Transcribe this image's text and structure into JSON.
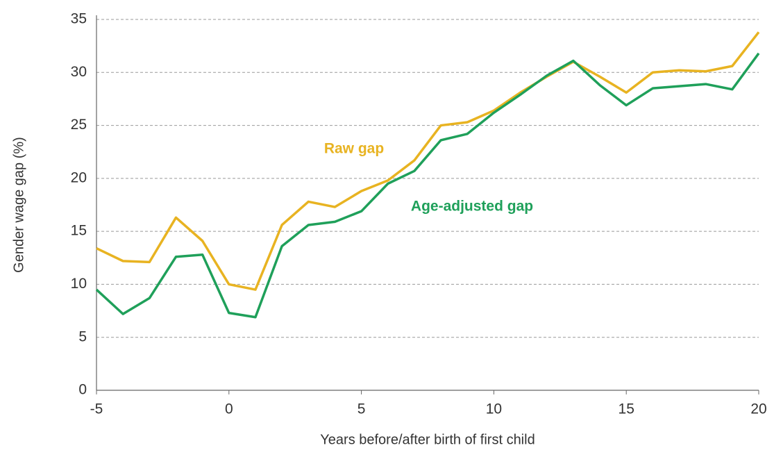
{
  "chart_data": {
    "type": "line",
    "x": [
      -5,
      -4,
      -3,
      -2,
      -1,
      0,
      1,
      2,
      3,
      4,
      5,
      6,
      7,
      8,
      9,
      10,
      11,
      12,
      13,
      14,
      15,
      16,
      17,
      18,
      19,
      20
    ],
    "series": [
      {
        "name": "Raw gap",
        "color": "#e8b321",
        "values": [
          13.4,
          12.2,
          12.1,
          16.3,
          14.1,
          10.0,
          9.5,
          15.6,
          17.8,
          17.3,
          18.8,
          19.8,
          21.7,
          25.0,
          25.3,
          26.4,
          28.1,
          29.6,
          31.0,
          29.6,
          28.1,
          30.0,
          30.2,
          30.1,
          30.6,
          33.8
        ]
      },
      {
        "name": "Age-adjusted gap",
        "color": "#1fa05a",
        "values": [
          9.5,
          7.2,
          8.7,
          12.6,
          12.8,
          7.3,
          6.9,
          13.6,
          15.6,
          15.9,
          16.9,
          19.5,
          20.7,
          23.6,
          24.2,
          26.2,
          27.9,
          29.7,
          31.1,
          28.8,
          26.9,
          28.5,
          28.7,
          28.9,
          28.4,
          31.8
        ]
      }
    ],
    "xlabel": "Years before/after birth of first child",
    "ylabel": "Gender wage gap (%)",
    "xlim": [
      -5,
      20
    ],
    "xticks": [
      -5,
      0,
      5,
      10,
      15,
      20
    ],
    "ylim": [
      0,
      35
    ],
    "yticks": [
      0,
      5,
      10,
      15,
      20,
      25,
      30,
      35
    ],
    "grid": true
  }
}
